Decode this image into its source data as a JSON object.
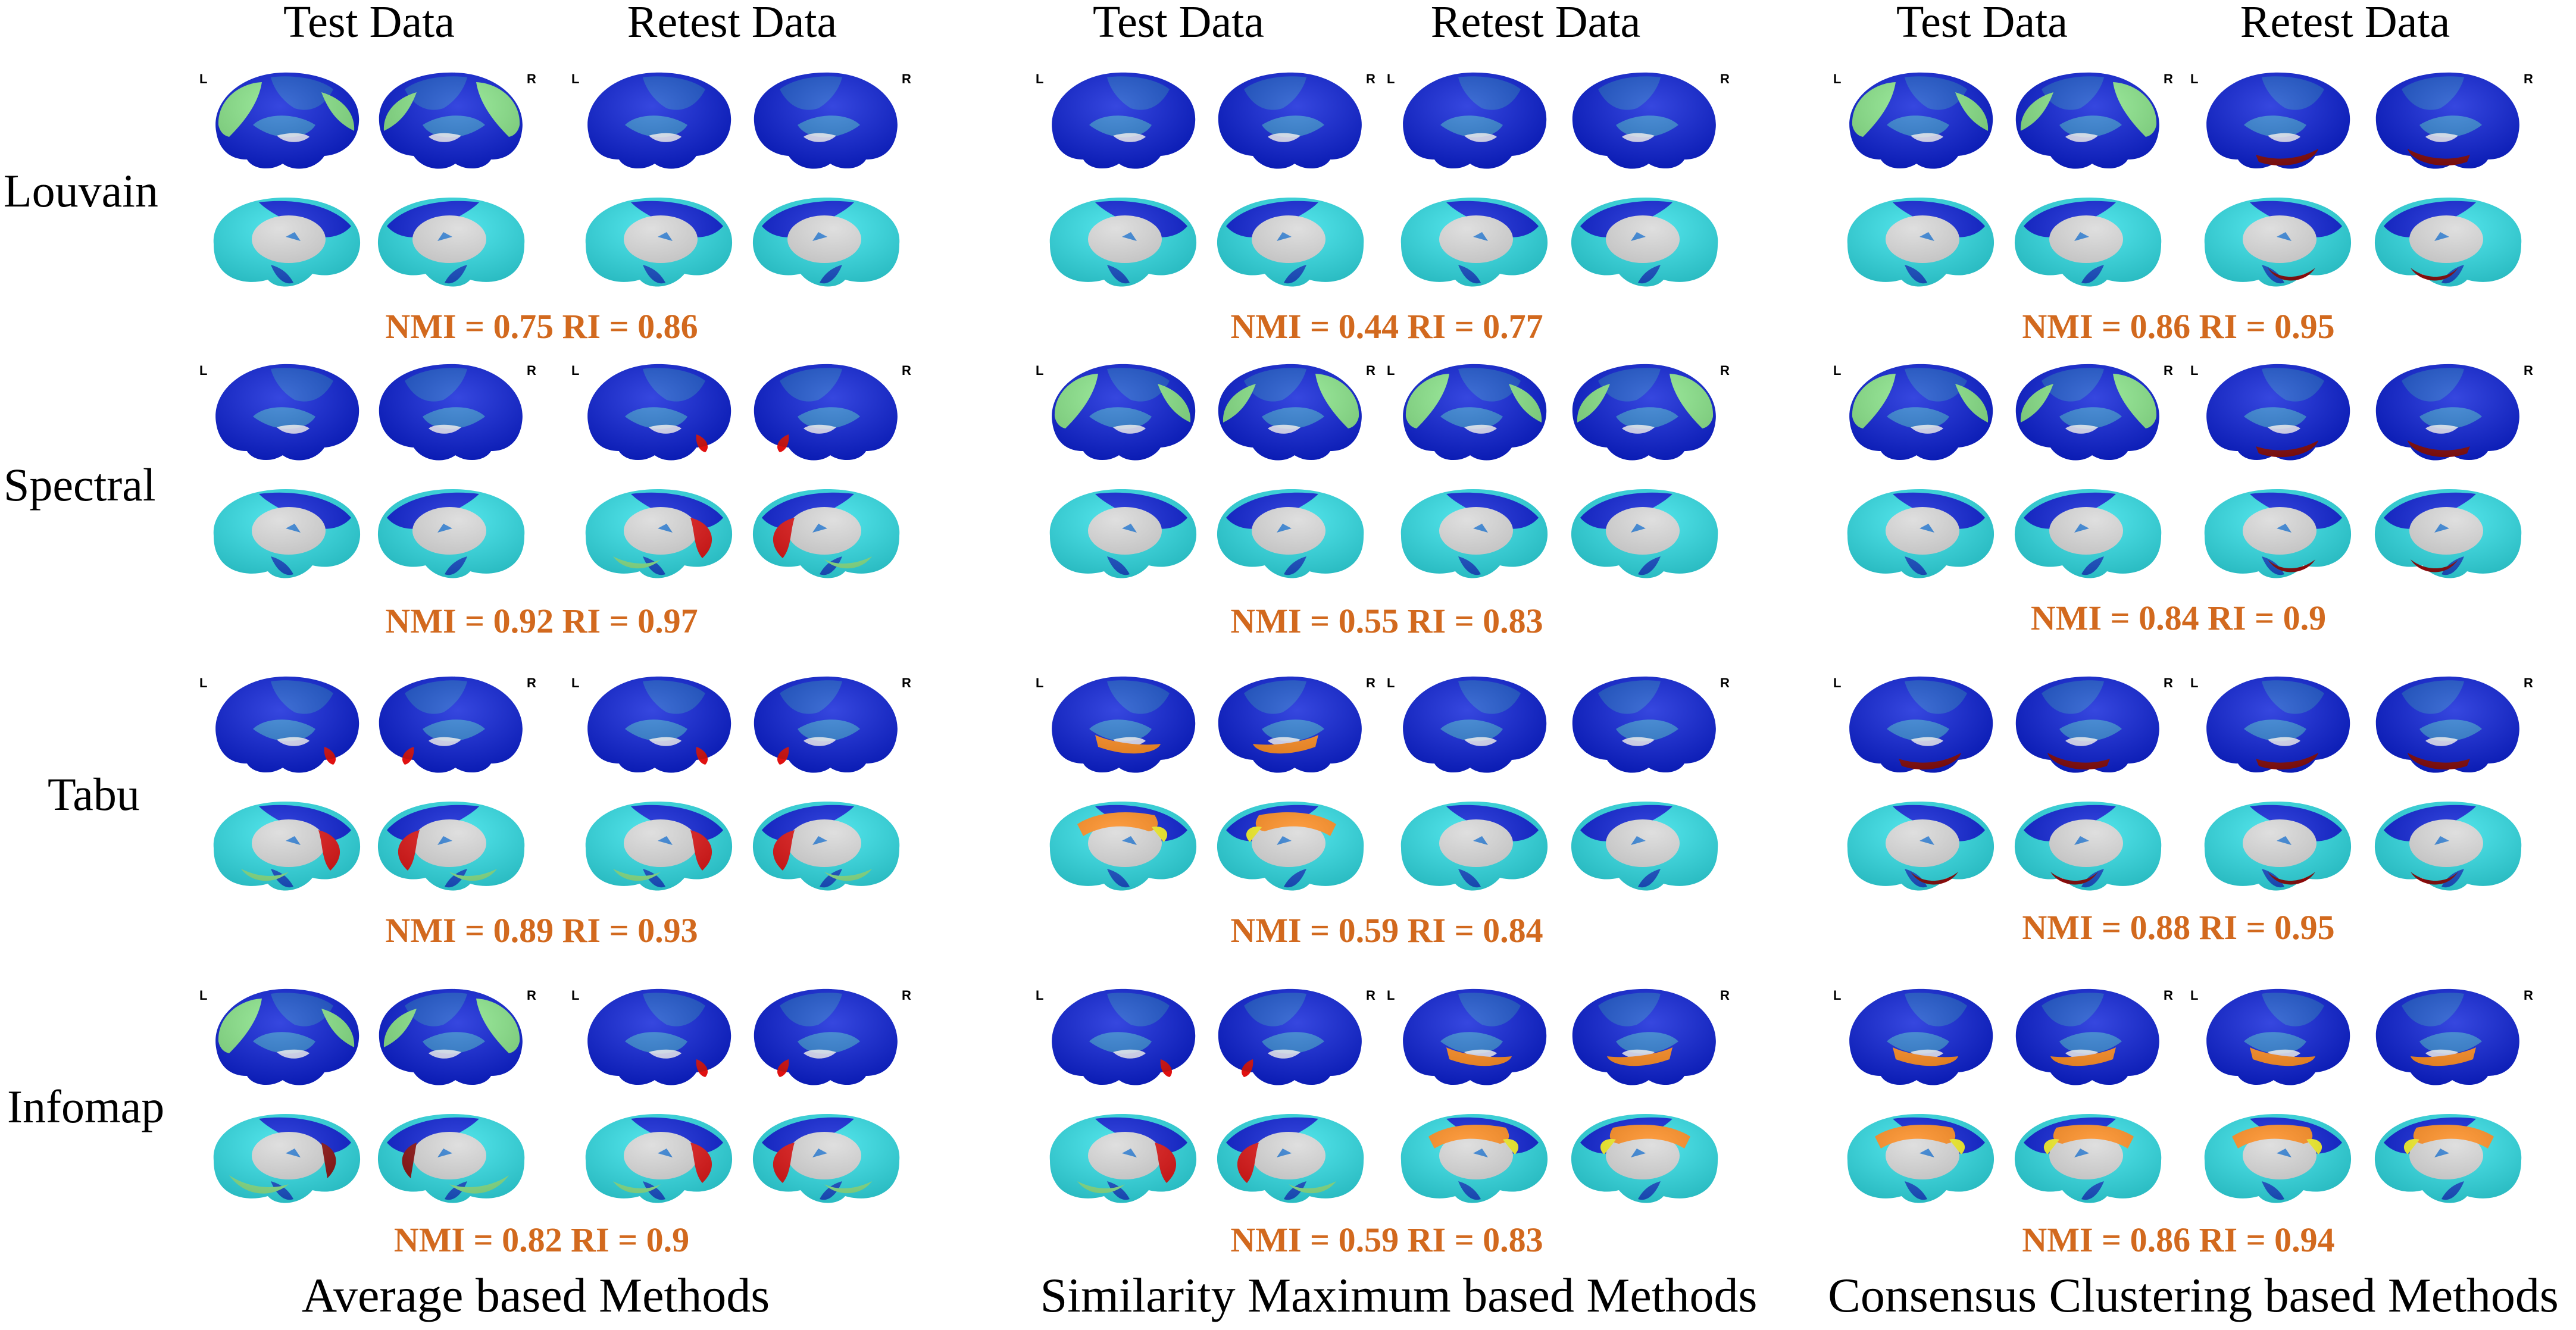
{
  "panels": [
    {
      "id": "average",
      "test_label": "Test Data",
      "retest_label": "Retest Data",
      "footer": "Average based Methods",
      "metrics": [
        "NMI = 0.75 RI = 0.86",
        "NMI = 0.92 RI = 0.97",
        "NMI = 0.89 RI = 0.93",
        "NMI = 0.82 RI = 0.9"
      ]
    },
    {
      "id": "similarity",
      "test_label": "Test Data",
      "retest_label": "Retest Data",
      "footer": "Similarity Maximum based Methods",
      "metrics": [
        "NMI = 0.44 RI = 0.77",
        "NMI = 0.55 RI = 0.83",
        "NMI = 0.59 RI = 0.84",
        "NMI = 0.59 RI = 0.83"
      ]
    },
    {
      "id": "consensus",
      "test_label": "Test Data",
      "retest_label": "Retest Data",
      "footer": "Consensus Clustering based Methods",
      "metrics": [
        "NMI = 0.86 RI = 0.95",
        "NMI = 0.84 RI = 0.9",
        "NMI = 0.88 RI = 0.95",
        "NMI = 0.86 RI = 0.94"
      ]
    }
  ],
  "rows": [
    "Louvain",
    "Spectral",
    "Tabu",
    "Infomap"
  ],
  "hemisphere_labels": {
    "left": "L",
    "right": "R"
  },
  "colors": {
    "dark_blue": "#0a1fd8",
    "mid_blue": "#1650cc",
    "steel_blue": "#2a7ad0",
    "cyan": "#2fe0e8",
    "light_green": "#8ae88a",
    "red": "#e01010",
    "dark_red": "#8a0a0a",
    "orange": "#ff8a1a",
    "yellow": "#f4f020",
    "medial_wall": "#d8d8d8",
    "metric_text": "#d2691e"
  },
  "brain_patterns": {
    "average": {
      "test": [
        "green",
        "plain",
        "accent-red",
        "accent-green"
      ],
      "retest": [
        "plain",
        "accent-red",
        "accent-red",
        "accent-red"
      ]
    },
    "similarity": {
      "test": [
        "plain",
        "green",
        "accent-orange",
        "accent-red"
      ],
      "retest": [
        "plain",
        "green",
        "plain",
        "accent-orange"
      ]
    },
    "consensus": {
      "test": [
        "green",
        "green",
        "accent-darkred",
        "accent-orange"
      ],
      "retest": [
        "accent-darkred",
        "accent-darkred",
        "accent-darkred",
        "accent-orange"
      ]
    }
  }
}
